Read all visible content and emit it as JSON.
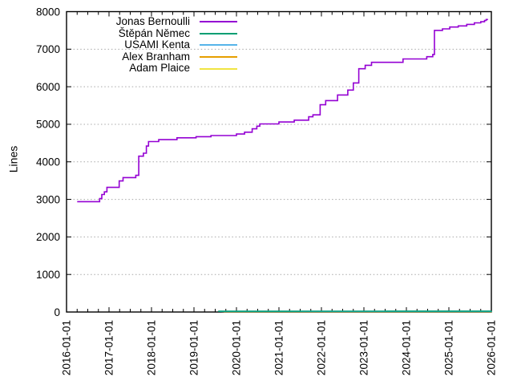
{
  "chart_data": {
    "type": "line",
    "style": "step-after",
    "title": "",
    "ylabel": "Lines",
    "background": "#ffffff",
    "border_color": "#000000",
    "x_axis": {
      "range_years": [
        2016,
        2026
      ],
      "tick_labels": [
        "2016-01-01",
        "2017-01-01",
        "2018-01-01",
        "2019-01-01",
        "2020-01-01",
        "2021-01-01",
        "2022-01-01",
        "2023-01-01",
        "2024-01-01",
        "2025-01-01",
        "2026-01-01"
      ],
      "minor_ticks_per_interval": 3,
      "label_rotation_deg": -90
    },
    "y_axis": {
      "range": [
        0,
        8000
      ],
      "ticks": [
        0,
        1000,
        2000,
        3000,
        4000,
        5000,
        6000,
        7000,
        8000
      ]
    },
    "grid": {
      "horizontal": true,
      "vertical": false,
      "line_style": "dotted",
      "color": "#a8a8a8"
    },
    "legend": {
      "position": "top-center-inside"
    },
    "series": [
      {
        "name": "Jonas Bernoulli",
        "color": "#9400d3",
        "points": [
          [
            2016.25,
            2940
          ],
          [
            2016.78,
            3020
          ],
          [
            2016.83,
            3130
          ],
          [
            2016.89,
            3200
          ],
          [
            2016.95,
            3320
          ],
          [
            2017.24,
            3490
          ],
          [
            2017.33,
            3580
          ],
          [
            2017.63,
            3640
          ],
          [
            2017.7,
            4150
          ],
          [
            2017.81,
            4230
          ],
          [
            2017.88,
            4420
          ],
          [
            2017.93,
            4540
          ],
          [
            2018.17,
            4590
          ],
          [
            2018.6,
            4640
          ],
          [
            2019.05,
            4670
          ],
          [
            2019.4,
            4700
          ],
          [
            2020.0,
            4740
          ],
          [
            2020.19,
            4790
          ],
          [
            2020.37,
            4880
          ],
          [
            2020.48,
            4950
          ],
          [
            2020.55,
            5010
          ],
          [
            2021.0,
            5060
          ],
          [
            2021.36,
            5110
          ],
          [
            2021.7,
            5200
          ],
          [
            2021.8,
            5250
          ],
          [
            2021.97,
            5520
          ],
          [
            2022.1,
            5630
          ],
          [
            2022.38,
            5780
          ],
          [
            2022.62,
            5910
          ],
          [
            2022.75,
            6100
          ],
          [
            2022.88,
            6480
          ],
          [
            2023.03,
            6570
          ],
          [
            2023.18,
            6650
          ],
          [
            2023.92,
            6740
          ],
          [
            2024.48,
            6800
          ],
          [
            2024.62,
            6860
          ],
          [
            2024.66,
            7500
          ],
          [
            2024.85,
            7540
          ],
          [
            2025.02,
            7590
          ],
          [
            2025.22,
            7620
          ],
          [
            2025.42,
            7660
          ],
          [
            2025.6,
            7700
          ],
          [
            2025.75,
            7730
          ],
          [
            2025.84,
            7765
          ],
          [
            2025.88,
            7790
          ],
          [
            2025.92,
            7790
          ]
        ]
      },
      {
        "name": "Štěpán Němec",
        "color": "#009e73",
        "points": [
          [
            2019.57,
            20
          ],
          [
            2021.5,
            22
          ],
          [
            2023.5,
            24
          ],
          [
            2026.0,
            26
          ]
        ]
      },
      {
        "name": "USAMI Kenta",
        "color": "#56b4e9",
        "points": [
          [
            2019.6,
            17
          ],
          [
            2026.0,
            19
          ]
        ]
      },
      {
        "name": "Alex Branham",
        "color": "#e69f00",
        "points": [
          [
            2019.65,
            15
          ],
          [
            2026.0,
            16
          ]
        ]
      },
      {
        "name": "Adam Plaice",
        "color": "#f0e442",
        "points": [
          [
            2019.7,
            13
          ],
          [
            2026.0,
            14
          ]
        ]
      }
    ]
  }
}
